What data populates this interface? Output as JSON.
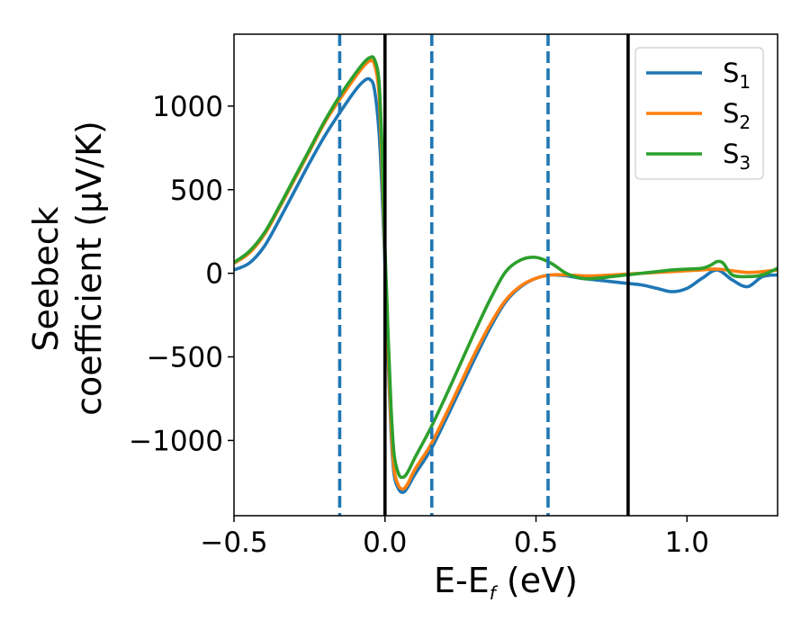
{
  "chart_data": {
    "type": "line",
    "title": "",
    "xlabel_main": "E-E",
    "xlabel_sub": "f",
    "xlabel_unit": " (eV)",
    "ylabel_line1": "Seebeck",
    "ylabel_line2": "coefficient  (μV/K)",
    "xlim": [
      -0.5,
      1.3
    ],
    "ylim": [
      -1450,
      1430
    ],
    "xticks": [
      -0.5,
      0.0,
      0.5,
      1.0
    ],
    "xtick_labels": [
      "−0.5",
      "0.0",
      "0.5",
      "1.0"
    ],
    "yticks": [
      -1000,
      -500,
      0,
      500,
      1000
    ],
    "ytick_labels": [
      "−1000",
      "−500",
      "0",
      "500",
      "1000"
    ],
    "vlines_solid": [
      0.0,
      0.805
    ],
    "vlines_dashed": [
      -0.15,
      0.155,
      0.54
    ],
    "legend": {
      "placement": "top-right",
      "entries": [
        {
          "main": "S",
          "sub": "1"
        },
        {
          "main": "S",
          "sub": "2"
        },
        {
          "main": "S",
          "sub": "3"
        }
      ]
    },
    "series": [
      {
        "name": "S1",
        "color": "#1f77b4",
        "x": [
          -0.5,
          -0.45,
          -0.4,
          -0.35,
          -0.3,
          -0.25,
          -0.2,
          -0.15,
          -0.1,
          -0.07,
          -0.05,
          -0.035,
          -0.02,
          -0.01,
          0.0,
          0.01,
          0.02,
          0.03,
          0.045,
          0.06,
          0.075,
          0.1,
          0.15,
          0.2,
          0.25,
          0.3,
          0.35,
          0.4,
          0.45,
          0.5,
          0.55,
          0.6,
          0.65,
          0.7,
          0.75,
          0.8,
          0.85,
          0.9,
          0.95,
          1.0,
          1.05,
          1.1,
          1.15,
          1.2,
          1.25,
          1.3
        ],
        "y": [
          20,
          60,
          160,
          320,
          490,
          660,
          820,
          960,
          1090,
          1150,
          1160,
          1100,
          850,
          500,
          50,
          -500,
          -950,
          -1200,
          -1290,
          -1310,
          -1280,
          -1200,
          -1060,
          -880,
          -690,
          -500,
          -320,
          -170,
          -80,
          -30,
          -10,
          -15,
          -30,
          -40,
          -50,
          -60,
          -70,
          -90,
          -110,
          -90,
          -30,
          20,
          -40,
          -80,
          -20,
          -10
        ]
      },
      {
        "name": "S2",
        "color": "#ff7f0e",
        "x": [
          -0.5,
          -0.45,
          -0.4,
          -0.35,
          -0.3,
          -0.25,
          -0.2,
          -0.15,
          -0.1,
          -0.07,
          -0.05,
          -0.035,
          -0.02,
          -0.01,
          0.0,
          0.01,
          0.02,
          0.03,
          0.045,
          0.06,
          0.075,
          0.1,
          0.15,
          0.2,
          0.25,
          0.3,
          0.35,
          0.4,
          0.45,
          0.5,
          0.55,
          0.6,
          0.65,
          0.7,
          0.75,
          0.8,
          0.85,
          0.9,
          0.95,
          1.0,
          1.05,
          1.1,
          1.15,
          1.2,
          1.25,
          1.3
        ],
        "y": [
          60,
          120,
          230,
          390,
          560,
          730,
          900,
          1040,
          1170,
          1240,
          1270,
          1250,
          1080,
          650,
          100,
          -450,
          -900,
          -1170,
          -1270,
          -1290,
          -1260,
          -1170,
          -1030,
          -850,
          -660,
          -470,
          -300,
          -160,
          -75,
          -30,
          -10,
          -10,
          -15,
          -15,
          -10,
          -5,
          0,
          5,
          10,
          15,
          20,
          25,
          15,
          5,
          10,
          20
        ]
      },
      {
        "name": "S3",
        "color": "#2ca02c",
        "x": [
          -0.5,
          -0.45,
          -0.4,
          -0.35,
          -0.3,
          -0.25,
          -0.2,
          -0.15,
          -0.1,
          -0.07,
          -0.05,
          -0.035,
          -0.02,
          -0.01,
          0.0,
          0.01,
          0.02,
          0.03,
          0.045,
          0.06,
          0.075,
          0.1,
          0.15,
          0.2,
          0.25,
          0.3,
          0.35,
          0.4,
          0.45,
          0.5,
          0.55,
          0.6,
          0.65,
          0.7,
          0.75,
          0.8,
          0.85,
          0.9,
          0.95,
          1.0,
          1.05,
          1.08,
          1.1,
          1.12,
          1.15,
          1.2,
          1.25,
          1.3
        ],
        "y": [
          65,
          130,
          240,
          400,
          570,
          740,
          910,
          1060,
          1190,
          1260,
          1290,
          1280,
          1150,
          750,
          150,
          -350,
          -800,
          -1080,
          -1200,
          -1220,
          -1190,
          -1100,
          -930,
          -740,
          -540,
          -340,
          -150,
          10,
          80,
          95,
          60,
          0,
          -30,
          -30,
          -20,
          -10,
          0,
          10,
          20,
          25,
          30,
          50,
          70,
          60,
          -10,
          -20,
          -10,
          30
        ]
      }
    ]
  }
}
